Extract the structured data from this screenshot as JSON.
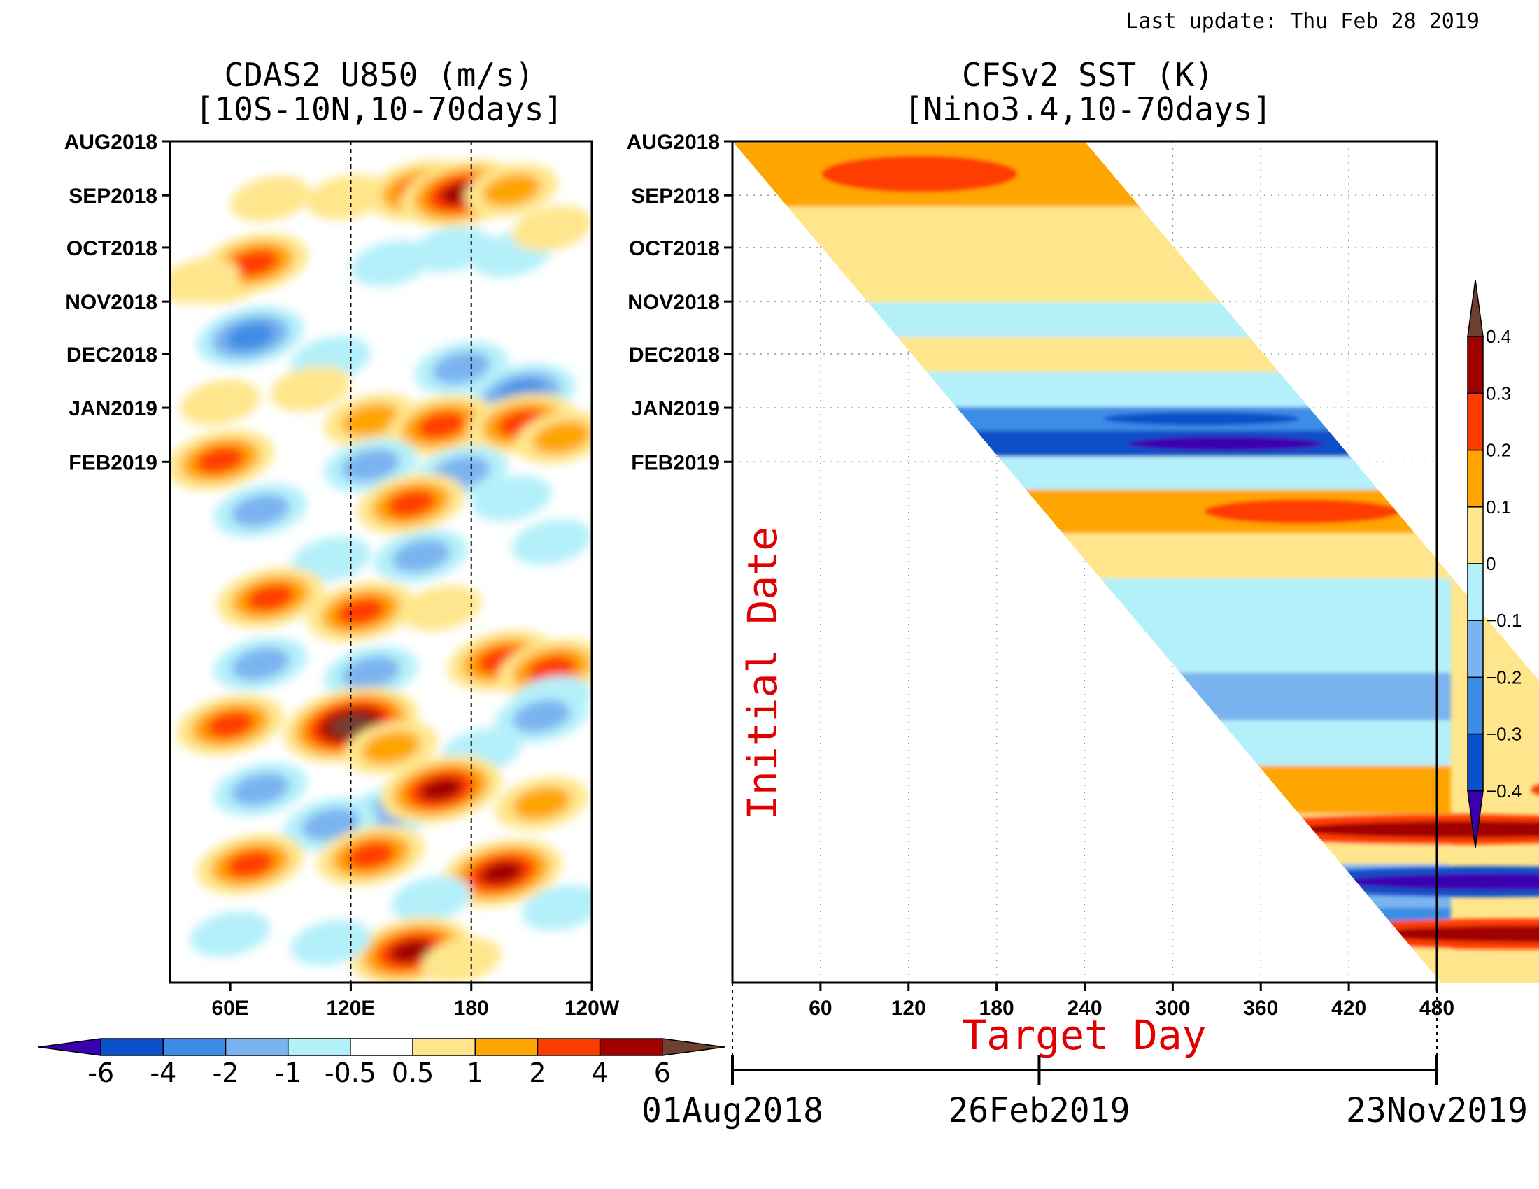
{
  "last_update": "Last update: Thu Feb 28 2019",
  "chart_data": [
    {
      "type": "heatmap",
      "title": "CDAS2 U850 (m/s)",
      "subtitle": "[10S-10N,10-70days]",
      "x_ticks": [
        "60E",
        "120E",
        "180",
        "120W"
      ],
      "y_ticks": [
        "AUG2018",
        "SEP2018",
        "OCT2018",
        "NOV2018",
        "DEC2018",
        "JAN2019",
        "FEB2019"
      ],
      "reference_lines": [
        "120E",
        "180"
      ],
      "colorbar": {
        "orientation": "horizontal",
        "labels": [
          "-6",
          "-4",
          "-2",
          "-1",
          "-0.5",
          "0.5",
          "1",
          "2",
          "4",
          "6"
        ],
        "colors": [
          "#3a00b0",
          "#0a50c8",
          "#3c8ce6",
          "#7ab4f0",
          "#b4f0fa",
          "#ffffff",
          "#ffe68c",
          "#ffa500",
          "#ff3c00",
          "#a00000",
          "#6e4030"
        ]
      },
      "blobs": [
        {
          "lon": 80,
          "t": 33,
          "v": 1
        },
        {
          "lon": 118,
          "t": 32,
          "v": 1
        },
        {
          "lon": 155,
          "t": 28,
          "v": 3
        },
        {
          "lon": 175,
          "t": 30,
          "v": 4
        },
        {
          "lon": 200,
          "t": 28,
          "v": 2
        },
        {
          "lon": 58,
          "t": 78,
          "v": 2
        },
        {
          "lon": 72,
          "t": 70,
          "v": 3
        },
        {
          "lon": 45,
          "t": 80,
          "v": 1
        },
        {
          "lon": 140,
          "t": 70,
          "v": -1
        },
        {
          "lon": 170,
          "t": 62,
          "v": -1
        },
        {
          "lon": 200,
          "t": 65,
          "v": -1
        },
        {
          "lon": 220,
          "t": 50,
          "v": 1
        },
        {
          "lon": 70,
          "t": 112,
          "v": -3
        },
        {
          "lon": 110,
          "t": 125,
          "v": -1
        },
        {
          "lon": 100,
          "t": 142,
          "v": 1
        },
        {
          "lon": 175,
          "t": 130,
          "v": -2
        },
        {
          "lon": 205,
          "t": 145,
          "v": -3
        },
        {
          "lon": 55,
          "t": 150,
          "v": 1
        },
        {
          "lon": 130,
          "t": 160,
          "v": 2
        },
        {
          "lon": 165,
          "t": 163,
          "v": 3
        },
        {
          "lon": 205,
          "t": 162,
          "v": 3
        },
        {
          "lon": 225,
          "t": 170,
          "v": 2
        },
        {
          "lon": 55,
          "t": 183,
          "v": 3
        },
        {
          "lon": 130,
          "t": 186,
          "v": -2
        },
        {
          "lon": 175,
          "t": 190,
          "v": -2
        },
        {
          "lon": 75,
          "t": 212,
          "v": -2
        },
        {
          "lon": 150,
          "t": 208,
          "v": 3
        },
        {
          "lon": 200,
          "t": 205,
          "v": -1
        },
        {
          "lon": 110,
          "t": 240,
          "v": -1
        },
        {
          "lon": 155,
          "t": 238,
          "v": -2
        },
        {
          "lon": 220,
          "t": 230,
          "v": -1
        },
        {
          "lon": 80,
          "t": 262,
          "v": 3
        },
        {
          "lon": 125,
          "t": 270,
          "v": 3
        },
        {
          "lon": 165,
          "t": 268,
          "v": 1
        },
        {
          "lon": 75,
          "t": 300,
          "v": -2
        },
        {
          "lon": 130,
          "t": 305,
          "v": -2
        },
        {
          "lon": 195,
          "t": 298,
          "v": 3
        },
        {
          "lon": 220,
          "t": 303,
          "v": 3
        },
        {
          "lon": 220,
          "t": 320,
          "v": -1
        },
        {
          "lon": 60,
          "t": 335,
          "v": 3
        },
        {
          "lon": 120,
          "t": 335,
          "v": 5
        },
        {
          "lon": 140,
          "t": 348,
          "v": 2
        },
        {
          "lon": 185,
          "t": 350,
          "v": -1
        },
        {
          "lon": 215,
          "t": 330,
          "v": -2
        },
        {
          "lon": 75,
          "t": 372,
          "v": -2
        },
        {
          "lon": 140,
          "t": 385,
          "v": -2
        },
        {
          "lon": 165,
          "t": 372,
          "v": 4
        },
        {
          "lon": 215,
          "t": 380,
          "v": 2
        },
        {
          "lon": 110,
          "t": 392,
          "v": -2
        },
        {
          "lon": 70,
          "t": 415,
          "v": 3
        },
        {
          "lon": 130,
          "t": 410,
          "v": 3
        },
        {
          "lon": 195,
          "t": 420,
          "v": 4
        },
        {
          "lon": 160,
          "t": 435,
          "v": -1
        },
        {
          "lon": 225,
          "t": 440,
          "v": -1
        },
        {
          "lon": 60,
          "t": 455,
          "v": -1
        },
        {
          "lon": 150,
          "t": 465,
          "v": 4
        },
        {
          "lon": 110,
          "t": 460,
          "v": -1
        },
        {
          "lon": 175,
          "t": 470,
          "v": 1
        }
      ]
    },
    {
      "type": "heatmap",
      "title": "CFSv2 SST (K)",
      "subtitle": "[Nino3.4,10-70days]",
      "xlabel": "Target Day",
      "ylabel": "Initial Date",
      "x_ticks": [
        60,
        120,
        180,
        240,
        300,
        360,
        420,
        480
      ],
      "y_ticks": [
        "AUG2018",
        "SEP2018",
        "OCT2018",
        "NOV2018",
        "DEC2018",
        "JAN2019",
        "FEB2019"
      ],
      "date_axis": [
        "01Aug2018",
        "26Feb2019",
        "23Nov2019"
      ],
      "colorbar": {
        "orientation": "vertical",
        "labels": [
          "0.4",
          "0.3",
          "0.2",
          "0.1",
          "0",
          "-0.1",
          "-0.2",
          "-0.3",
          "-0.4"
        ],
        "colors": [
          "#6e4030",
          "#a00000",
          "#ff3c00",
          "#ffa500",
          "#ffe68c",
          "#b4f0fa",
          "#7ab4f0",
          "#3c8ce6",
          "#0a50c8",
          "#3a00b0"
        ]
      },
      "bands": [
        {
          "t": 20,
          "v": 2
        },
        {
          "t": 55,
          "v": 1
        },
        {
          "t": 80,
          "v": 1
        },
        {
          "t": 105,
          "v": 0
        },
        {
          "t": 120,
          "v": 1
        },
        {
          "t": 145,
          "v": 0
        },
        {
          "t": 160,
          "v": -2
        },
        {
          "t": 172,
          "v": -3
        },
        {
          "t": 190,
          "v": 0
        },
        {
          "t": 210,
          "v": 2
        },
        {
          "t": 240,
          "v": 1
        },
        {
          "t": 262,
          "v": 0
        },
        {
          "t": 290,
          "v": 0
        },
        {
          "t": 320,
          "v": -1
        },
        {
          "t": 345,
          "v": 0
        },
        {
          "t": 372,
          "v": 2
        },
        {
          "t": 400,
          "v": 1
        },
        {
          "t": 430,
          "v": -1
        },
        {
          "t": 450,
          "v": -2
        },
        {
          "t": 470,
          "v": 1
        }
      ],
      "strong": [
        {
          "t": 395,
          "td_lo": 330,
          "v": 4
        },
        {
          "t": 425,
          "td_lo": 360,
          "v": -4
        },
        {
          "t": 455,
          "td_lo": 380,
          "v": 5
        }
      ]
    }
  ]
}
